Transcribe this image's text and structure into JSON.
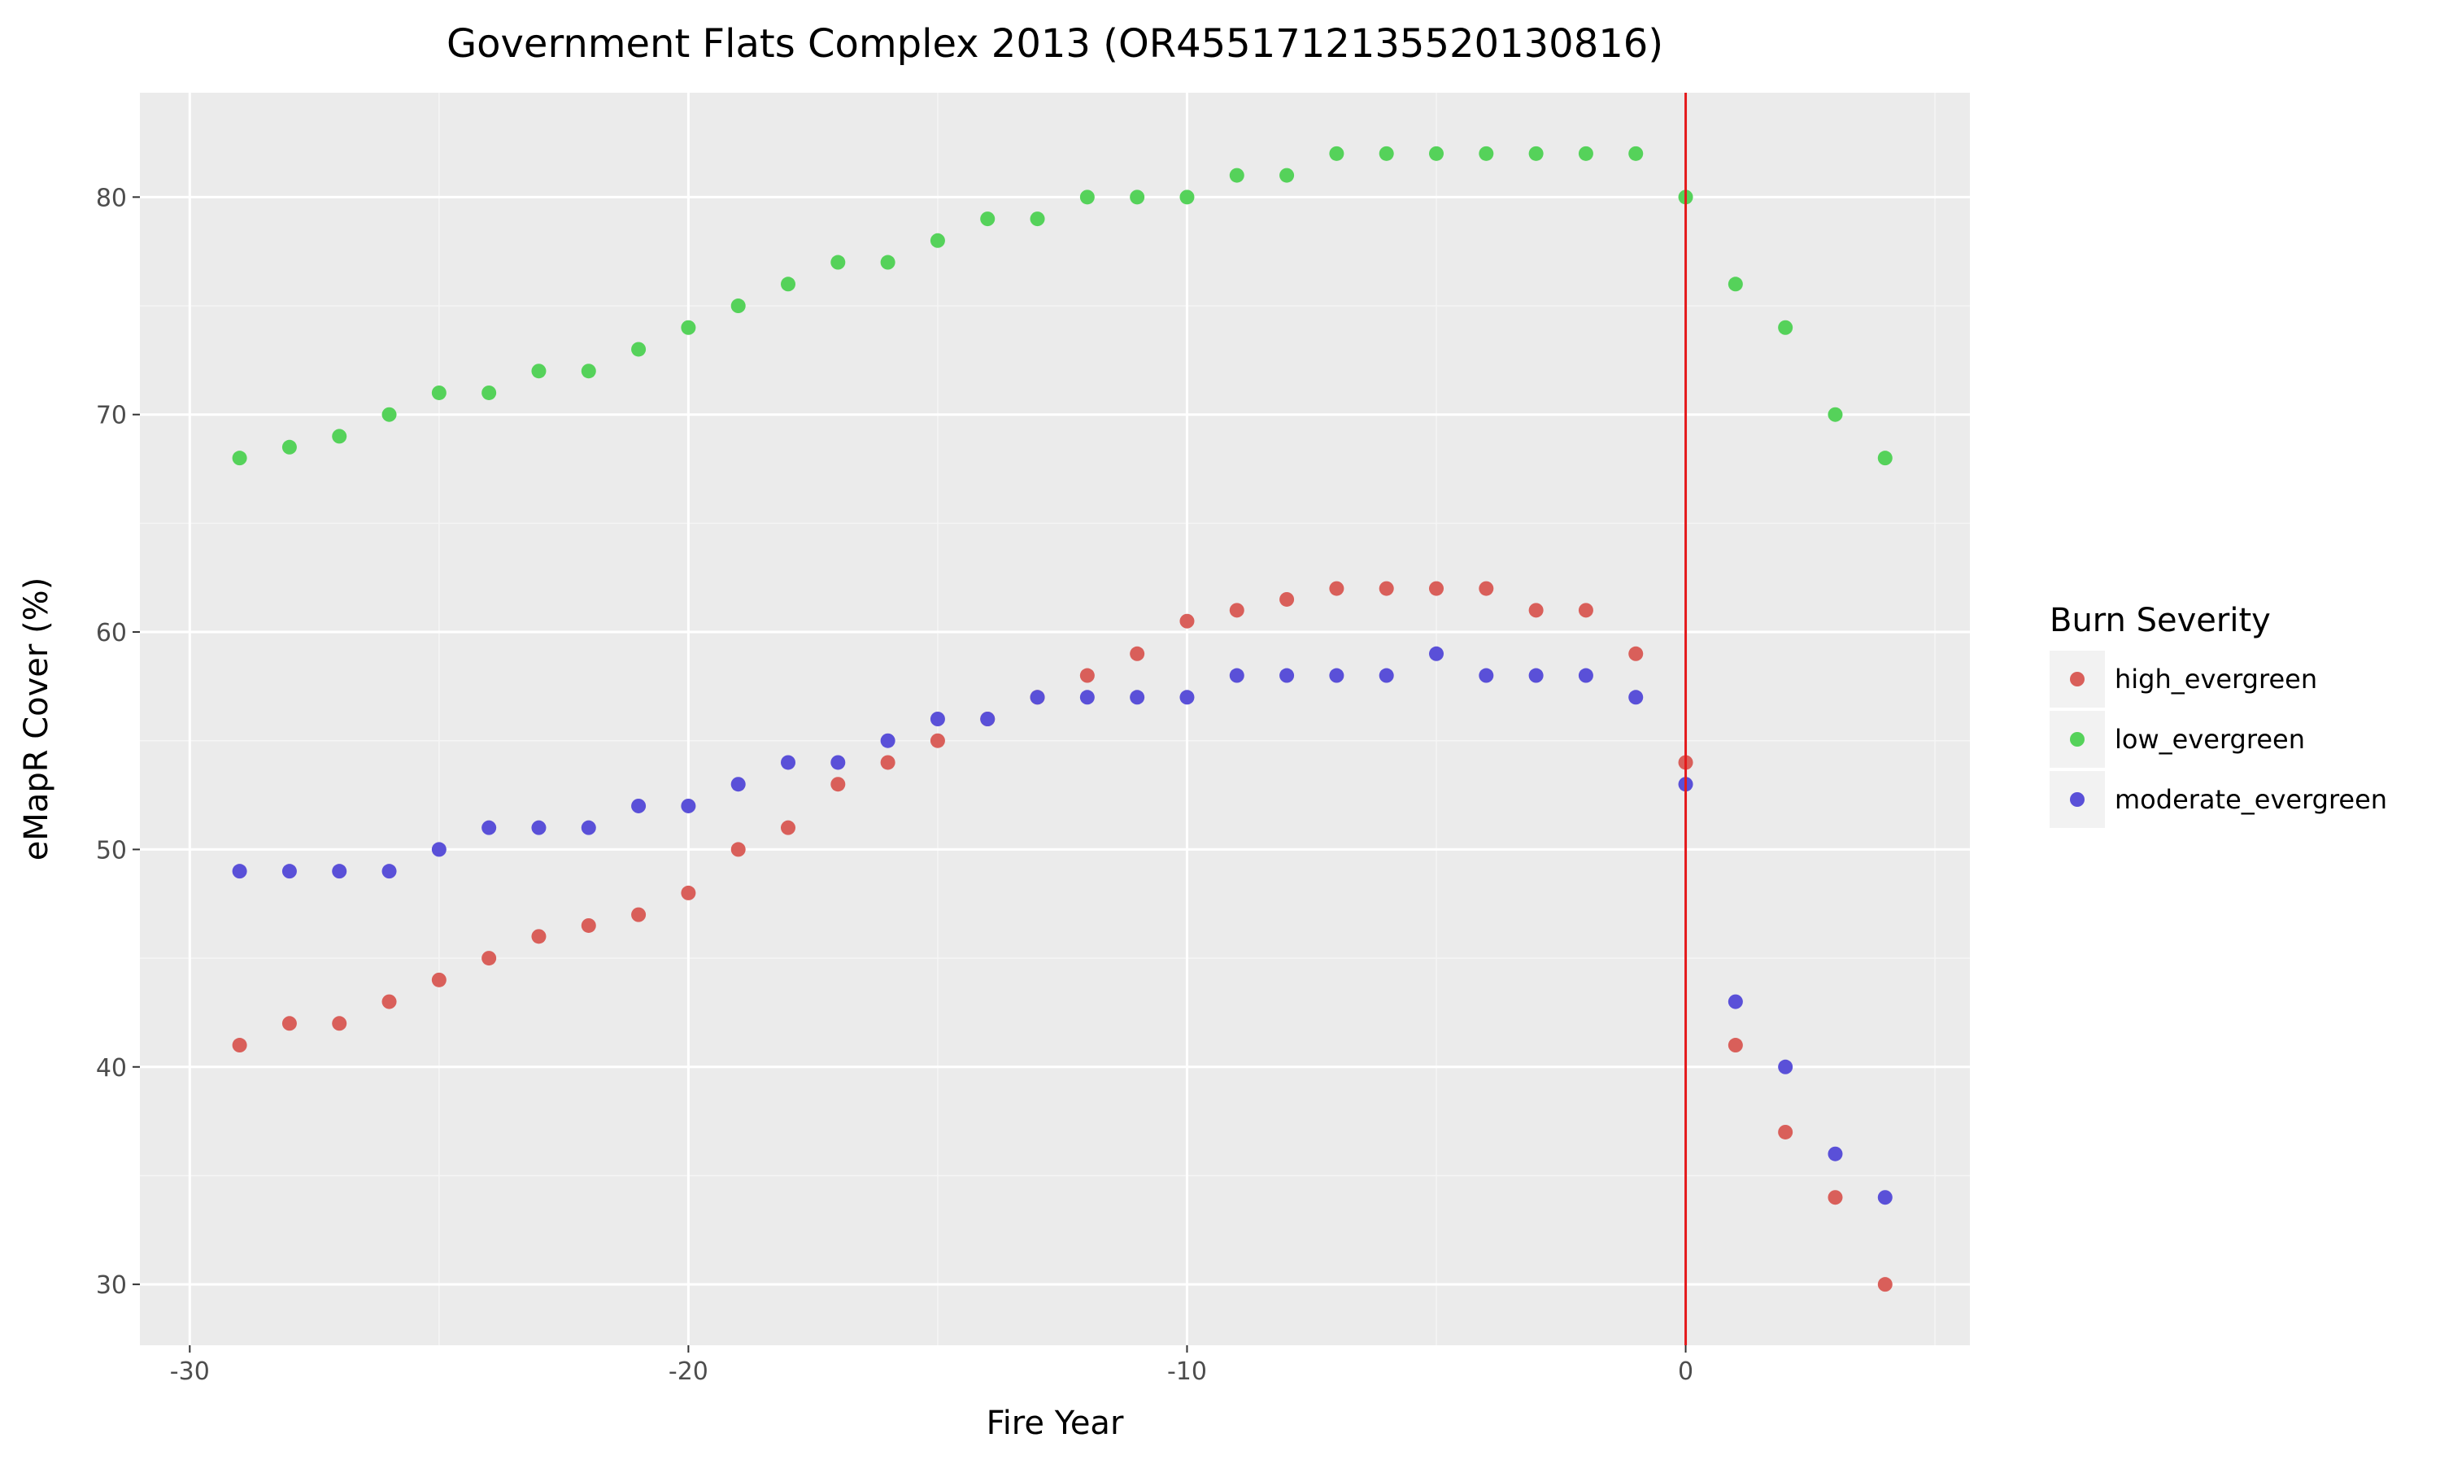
{
  "chart_data": {
    "type": "scatter",
    "title": "Government Flats Complex 2013 (OR4551712135520130816)",
    "xlabel": "Fire Year",
    "ylabel": "eMapR Cover (%)",
    "xlim": [
      -31,
      5.7
    ],
    "ylim": [
      27.2,
      84.8
    ],
    "xticks": [
      -30,
      -20,
      -10,
      0
    ],
    "yticks": [
      30,
      40,
      50,
      60,
      70,
      80
    ],
    "grid": true,
    "vline": {
      "x": 0,
      "color": "#e41a1c"
    },
    "legend": {
      "title": "Burn Severity",
      "position": "right"
    },
    "series": [
      {
        "name": "high_evergreen",
        "color": "#d95f5a",
        "x": [
          -29,
          -28,
          -27,
          -26,
          -25,
          -24,
          -23,
          -22,
          -21,
          -20,
          -19,
          -18,
          -17,
          -16,
          -15,
          -14,
          -13,
          -12,
          -11,
          -10,
          -9,
          -8,
          -7,
          -6,
          -5,
          -4,
          -3,
          -2,
          -1,
          0,
          1,
          2,
          3,
          4
        ],
        "y": [
          41,
          42,
          42,
          43,
          44,
          45,
          46,
          46.5,
          47,
          48,
          50,
          51,
          53,
          54,
          55,
          56,
          57,
          58,
          59,
          60.5,
          61,
          61.5,
          62,
          62,
          62,
          62,
          61,
          61,
          59,
          54,
          41,
          37,
          34,
          30
        ]
      },
      {
        "name": "low_evergreen",
        "color": "#55d25a",
        "x": [
          -29,
          -28,
          -27,
          -26,
          -25,
          -24,
          -23,
          -22,
          -21,
          -20,
          -19,
          -18,
          -17,
          -16,
          -15,
          -14,
          -13,
          -12,
          -11,
          -10,
          -9,
          -8,
          -7,
          -6,
          -5,
          -4,
          -3,
          -2,
          -1,
          0,
          1,
          2,
          3,
          4
        ],
        "y": [
          68,
          68.5,
          69,
          70,
          71,
          71,
          72,
          72,
          73,
          74,
          75,
          76,
          77,
          77,
          78,
          79,
          79,
          80,
          80,
          80,
          81,
          81,
          82,
          82,
          82,
          82,
          82,
          82,
          82,
          80,
          76,
          74,
          70,
          68
        ]
      },
      {
        "name": "moderate_evergreen",
        "color": "#5a50d8",
        "x": [
          -29,
          -28,
          -27,
          -26,
          -25,
          -24,
          -23,
          -22,
          -21,
          -20,
          -19,
          -18,
          -17,
          -16,
          -15,
          -14,
          -13,
          -12,
          -11,
          -10,
          -9,
          -8,
          -7,
          -6,
          -5,
          -4,
          -3,
          -2,
          -1,
          0,
          1,
          2,
          3,
          4
        ],
        "y": [
          49,
          49,
          49,
          49,
          50,
          51,
          51,
          51,
          52,
          52,
          53,
          54,
          54,
          55,
          56,
          56,
          57,
          57,
          57,
          57,
          58,
          58,
          58,
          58,
          59,
          58,
          58,
          58,
          57,
          53,
          43,
          40,
          36,
          34
        ]
      }
    ]
  }
}
